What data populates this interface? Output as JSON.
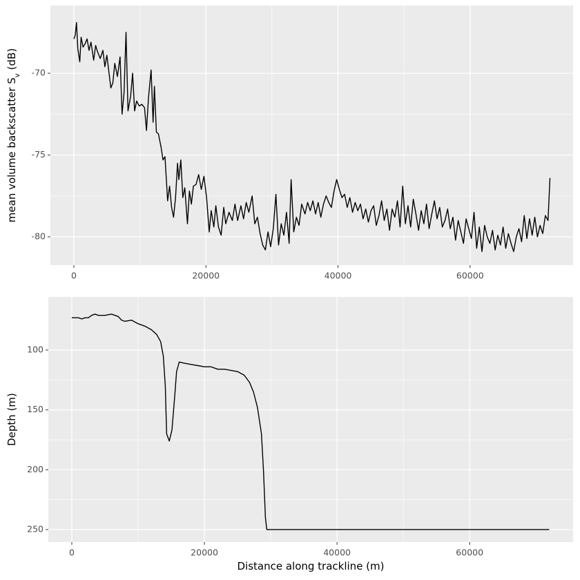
{
  "chart_data": [
    {
      "type": "line",
      "color": "#000000",
      "ylabel": [
        "mean volume backscatter S",
        "v",
        "(dB)"
      ],
      "xlim": [
        -3550,
        75600
      ],
      "ylim": [
        -81.73,
        -65.86
      ],
      "xticks": [
        0,
        20000,
        40000,
        60000
      ],
      "yticks": [
        -80,
        -75,
        -70
      ],
      "grid": true,
      "x": [
        0,
        200,
        400,
        600,
        900,
        1100,
        1400,
        1700,
        2000,
        2300,
        2600,
        3000,
        3300,
        3600,
        4000,
        4400,
        4700,
        5000,
        5300,
        5600,
        5900,
        6200,
        6600,
        7000,
        7300,
        7600,
        7900,
        8200,
        8600,
        8900,
        9200,
        9500,
        9900,
        10300,
        10700,
        11000,
        11300,
        11700,
        12000,
        12200,
        12500,
        12800,
        13200,
        13500,
        13800,
        14200,
        14500,
        14800,
        15100,
        15400,
        15700,
        15900,
        16200,
        16500,
        16800,
        17200,
        17500,
        17800,
        18100,
        18500,
        18900,
        19300,
        19700,
        20100,
        20500,
        20800,
        21200,
        21500,
        21900,
        22300,
        22700,
        23000,
        23500,
        24000,
        24400,
        24800,
        25300,
        25700,
        26100,
        26500,
        27000,
        27400,
        27800,
        28200,
        28600,
        29000,
        29400,
        29800,
        30200,
        30600,
        31000,
        31400,
        31800,
        32200,
        32600,
        32900,
        33300,
        33700,
        34100,
        34500,
        35000,
        35400,
        35800,
        36200,
        36600,
        37000,
        37400,
        37800,
        38200,
        38600,
        39000,
        39400,
        39800,
        40200,
        40600,
        41000,
        41400,
        41800,
        42200,
        42600,
        43000,
        43400,
        43800,
        44200,
        44600,
        45000,
        45400,
        45800,
        46200,
        46600,
        47000,
        47400,
        47800,
        48200,
        48600,
        49000,
        49400,
        49800,
        50200,
        50600,
        51000,
        51400,
        51800,
        52200,
        52600,
        53000,
        53400,
        53800,
        54200,
        54600,
        55000,
        55400,
        55800,
        56200,
        56600,
        57000,
        57400,
        57800,
        58200,
        58600,
        59000,
        59400,
        59800,
        60200,
        60600,
        61000,
        61400,
        61800,
        62200,
        62600,
        63000,
        63400,
        63800,
        64200,
        64600,
        65000,
        65400,
        65800,
        66200,
        66600,
        67000,
        67400,
        67800,
        68200,
        68600,
        69000,
        69400,
        69800,
        70200,
        70600,
        71000,
        71400,
        71800,
        72100
      ],
      "values": [
        -67.9,
        -67.7,
        -66.9,
        -68.5,
        -69.3,
        -67.8,
        -68.4,
        -68.2,
        -67.9,
        -68.6,
        -68.1,
        -69.2,
        -68.3,
        -68.7,
        -69.1,
        -68.6,
        -69.6,
        -68.9,
        -69.9,
        -70.9,
        -70.6,
        -69.4,
        -70.2,
        -69.0,
        -72.5,
        -71.2,
        -67.5,
        -72.3,
        -71.4,
        -70.0,
        -72.3,
        -71.7,
        -72.0,
        -71.9,
        -72.1,
        -73.5,
        -71.5,
        -69.8,
        -73.0,
        -70.8,
        -73.6,
        -73.7,
        -74.5,
        -75.3,
        -75.1,
        -77.8,
        -76.9,
        -78.2,
        -78.8,
        -77.6,
        -75.5,
        -76.5,
        -75.3,
        -77.6,
        -77.0,
        -79.2,
        -77.2,
        -78.0,
        -76.9,
        -76.8,
        -76.2,
        -77.1,
        -76.3,
        -77.6,
        -79.7,
        -78.4,
        -79.4,
        -78.1,
        -79.4,
        -79.9,
        -78.2,
        -79.2,
        -78.5,
        -79.0,
        -78.0,
        -79.0,
        -78.1,
        -78.9,
        -77.9,
        -78.5,
        -77.5,
        -79.2,
        -78.8,
        -79.8,
        -80.5,
        -80.8,
        -79.7,
        -80.6,
        -79.5,
        -77.4,
        -80.5,
        -79.2,
        -79.9,
        -78.5,
        -80.4,
        -76.5,
        -79.7,
        -78.8,
        -79.3,
        -78.0,
        -78.6,
        -77.9,
        -78.4,
        -77.8,
        -78.6,
        -77.9,
        -78.8,
        -78.0,
        -77.5,
        -77.9,
        -78.2,
        -77.2,
        -76.5,
        -77.1,
        -77.6,
        -77.4,
        -78.2,
        -77.6,
        -78.5,
        -77.9,
        -78.4,
        -78.0,
        -78.9,
        -78.3,
        -79.1,
        -78.4,
        -78.1,
        -79.3,
        -78.7,
        -77.8,
        -79.0,
        -78.3,
        -79.6,
        -78.3,
        -78.8,
        -77.8,
        -79.4,
        -76.9,
        -79.2,
        -78.1,
        -79.4,
        -77.7,
        -78.6,
        -79.6,
        -78.4,
        -79.2,
        -78.0,
        -79.5,
        -78.6,
        -77.8,
        -78.9,
        -78.2,
        -79.4,
        -79.0,
        -78.3,
        -79.5,
        -78.8,
        -80.2,
        -79.0,
        -79.7,
        -80.4,
        -78.9,
        -79.5,
        -80.1,
        -78.5,
        -80.7,
        -79.4,
        -80.9,
        -79.3,
        -80.0,
        -80.4,
        -79.6,
        -80.8,
        -79.9,
        -80.5,
        -79.4,
        -80.7,
        -79.8,
        -80.4,
        -80.9,
        -80.0,
        -79.5,
        -80.3,
        -78.7,
        -80.1,
        -78.9,
        -79.9,
        -78.8,
        -80.0,
        -79.3,
        -79.8,
        -78.7,
        -79.0,
        -76.4
      ]
    },
    {
      "type": "line",
      "color": "#000000",
      "xlabel": "Distance along trackline (m)",
      "ylabel": "Depth (m)",
      "xlim": [
        -3540,
        75600
      ],
      "ylim": [
        260.4,
        55.6
      ],
      "xticks": [
        0,
        20000,
        40000,
        60000
      ],
      "yticks": [
        100,
        150,
        200,
        250
      ],
      "grid": true,
      "x": [
        0,
        1000,
        1500,
        2000,
        2500,
        3000,
        3500,
        4000,
        5000,
        6000,
        6500,
        7000,
        7500,
        8000,
        9000,
        10000,
        11000,
        12000,
        12800,
        13400,
        13800,
        14100,
        14300,
        14700,
        15100,
        15500,
        15800,
        16200,
        17000,
        18000,
        19000,
        20000,
        21000,
        22000,
        23000,
        24000,
        25000,
        26000,
        26800,
        27400,
        28000,
        28600,
        28900,
        29200,
        29400,
        72000
      ],
      "values": [
        73,
        73,
        74,
        73,
        73,
        71,
        70,
        71,
        71,
        70,
        71,
        72,
        75,
        76,
        75,
        78,
        80,
        83,
        87,
        93,
        105,
        130,
        170,
        176,
        167,
        140,
        118,
        110,
        111,
        112,
        113,
        114,
        114,
        116,
        116,
        117,
        118,
        121,
        127,
        135,
        148,
        170,
        200,
        240,
        250,
        250
      ]
    }
  ]
}
